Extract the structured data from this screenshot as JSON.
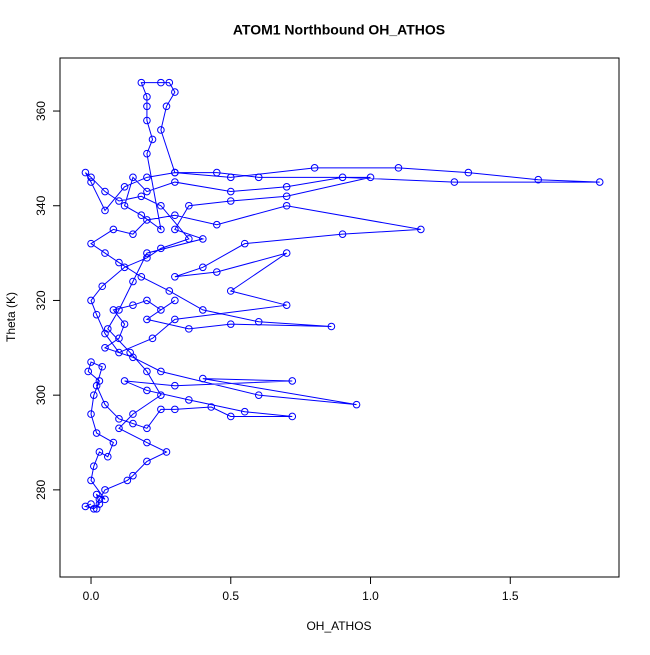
{
  "chart_data": {
    "type": "line",
    "title": "ATOM1 Northbound OH_ATHOS",
    "x_label": "OH_ATHOS",
    "y_label": "Theta (K)",
    "xlim": [
      -0.111,
      1.889
    ],
    "ylim": [
      261.6,
      371.2
    ],
    "xticks": [
      {
        "value": 0,
        "label": "0.0"
      },
      0.5,
      {
        "value": 1,
        "label": "1.0"
      },
      1.5
    ],
    "yticks": [
      280,
      300,
      320,
      340,
      360
    ],
    "markers": true,
    "color": "#0000ff",
    "series": [
      {
        "x": [
          0.0,
          -0.02,
          0.01,
          0.03,
          0.02,
          0.05,
          0.0,
          0.01,
          0.03,
          0.06,
          0.08,
          0.02,
          0.0,
          0.01,
          0.03,
          -0.01,
          0.0,
          0.04,
          0.02,
          0.05,
          0.1,
          0.15,
          0.2,
          0.25,
          0.3,
          0.43,
          0.5,
          0.72,
          0.55,
          0.35,
          0.2,
          0.12,
          0.3,
          0.72,
          0.4,
          0.95,
          0.6,
          0.25,
          0.15,
          0.05,
          0.1,
          0.12,
          0.08,
          0.15,
          0.2,
          0.25,
          0.3,
          0.2,
          0.35,
          0.5,
          0.86,
          0.6,
          0.4,
          0.28,
          0.18,
          0.1,
          0.05,
          0.0,
          0.08,
          0.15,
          0.2,
          0.3,
          0.45,
          0.7,
          1.18,
          0.9,
          0.55,
          0.4,
          0.3,
          0.45,
          0.7,
          0.5,
          0.7,
          0.3,
          0.22,
          0.1,
          0.05,
          0.02,
          0.0,
          0.04,
          0.12,
          0.2,
          0.25,
          0.35,
          0.25,
          0.18,
          0.1,
          0.05,
          0.0,
          -0.02,
          0.0,
          0.05,
          0.12,
          0.2,
          0.3,
          0.5,
          0.8,
          1.1,
          1.35,
          1.6,
          1.82,
          1.3,
          0.9,
          0.7,
          0.5,
          0.3,
          0.2,
          0.15,
          0.12,
          0.18,
          0.25,
          0.2,
          0.22,
          0.2,
          0.2,
          0.2,
          0.18,
          0.25,
          0.28,
          0.3,
          0.27,
          0.25,
          0.3,
          0.45,
          0.6,
          1.0,
          0.7,
          0.5,
          0.35,
          0.3,
          0.4,
          0.2,
          0.15,
          0.1,
          0.06,
          0.14,
          0.2,
          0.25,
          0.15,
          0.1,
          0.2,
          0.27,
          0.2,
          0.15,
          0.13,
          0.05,
          0.03,
          0.02
        ],
        "values": [
          277,
          276.5,
          276,
          277,
          279,
          278,
          282,
          285,
          288,
          287,
          290,
          292,
          296,
          300,
          303,
          305,
          307,
          306,
          302,
          298,
          295,
          294,
          293,
          297,
          297,
          297.5,
          295.5,
          295.5,
          296.5,
          299,
          301,
          303,
          302,
          303,
          303.5,
          298,
          300,
          305,
          308,
          310,
          312,
          315,
          318,
          319,
          320,
          318,
          320,
          316,
          314,
          315,
          314.5,
          315.5,
          318,
          322,
          325,
          328,
          330,
          332,
          335,
          334,
          337,
          338,
          336,
          340,
          335,
          334,
          332,
          327,
          325,
          326,
          330,
          322,
          319,
          316,
          312,
          309,
          313,
          317,
          320,
          323,
          327,
          329,
          331,
          333,
          340,
          342,
          341,
          343,
          346,
          347,
          345,
          339,
          344,
          346,
          347,
          346,
          348,
          348,
          347,
          345.5,
          345,
          345,
          346,
          344,
          343,
          345,
          343,
          346,
          340,
          338,
          335,
          351,
          354,
          358,
          361,
          363,
          366,
          366,
          366,
          364,
          361,
          356,
          347,
          347,
          346,
          346,
          342,
          341,
          340,
          335,
          333,
          330,
          324,
          318,
          314,
          309,
          305,
          300,
          296,
          293,
          290,
          288,
          286,
          283,
          282,
          280,
          278,
          276
        ]
      }
    ]
  }
}
